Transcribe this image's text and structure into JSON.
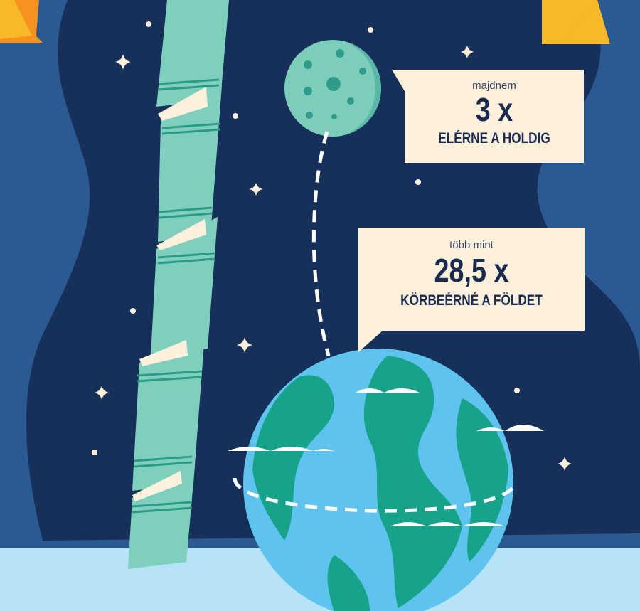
{
  "callouts": {
    "moon": {
      "prefix": "majdnem",
      "value": "3 x",
      "caption": "ELÉRNE A HOLDIG"
    },
    "earth": {
      "prefix": "több mint",
      "value": "28,5 x",
      "caption": "KÖRBEÉRNÉ A FÖLDET"
    }
  },
  "colors": {
    "background": "#2b5a93",
    "space": "#17305a",
    "ground": "#b7e3f8",
    "book": "#7fcfbf",
    "moon": "#7dcdbb",
    "ocean": "#5ec3ee",
    "land": "#17a38a",
    "ribbon": "#f7b928",
    "callout": "#fdf0dc"
  },
  "icons": {
    "stars": "sparkle-star-icon",
    "dots": "star-dot-icon"
  }
}
